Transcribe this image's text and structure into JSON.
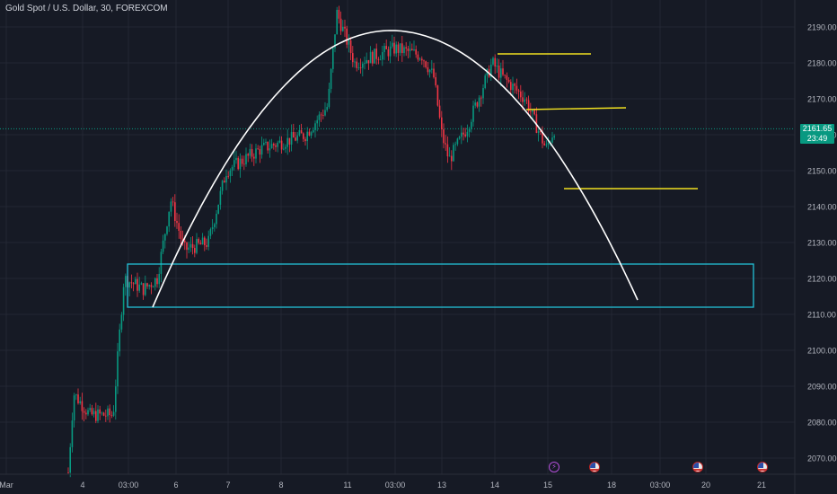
{
  "header": {
    "title": "Gold Spot / U.S. Dollar, 30, FOREXCOM"
  },
  "price_tag": {
    "price": "2161.65",
    "countdown": "23:49"
  },
  "colors": {
    "background": "#161a25",
    "grid": "#232733",
    "up": "#089981",
    "down": "#f23645",
    "arc": "#ffffff",
    "box": "#22c0d6",
    "levels": "#f0e020",
    "axis_text": "#b2b5be"
  },
  "events": [
    {
      "icon": "lightning-icon",
      "date": "15"
    },
    {
      "icon": "us-flag-icon",
      "date": "15"
    },
    {
      "icon": "us-flag-icon",
      "date": "20"
    },
    {
      "icon": "us-flag-icon",
      "date": "21"
    }
  ],
  "chart_data": {
    "type": "candlestick",
    "title": "Gold Spot / U.S. Dollar, 30, FOREXCOM",
    "ylim": [
      2065,
      2195
    ],
    "y_ticks": [
      2070,
      2080,
      2090,
      2100,
      2110,
      2120,
      2130,
      2140,
      2150,
      2160,
      2170,
      2180,
      2190
    ],
    "y_tick_labels": [
      "2070.00",
      "2080.00",
      "2090.00",
      "2100.00",
      "2110.00",
      "2120.00",
      "2130.00",
      "2140.00",
      "2150.00",
      "2160.00",
      "2170.00",
      "2180.00",
      "2190.00"
    ],
    "x_tick_labels": [
      "Mar",
      "4",
      "03:00",
      "6",
      "7",
      "8",
      "11",
      "03:00",
      "13",
      "14",
      "15",
      "18",
      "03:00",
      "20",
      "21"
    ],
    "current_price": 2161.65,
    "price_path": [
      [
        "4",
        2066
      ],
      [
        "4",
        2088
      ],
      [
        "4",
        2082
      ],
      [
        "03:00",
        2082
      ],
      [
        "03:00",
        2120
      ],
      [
        "03:00",
        2117
      ],
      [
        "6",
        2120
      ],
      [
        "6",
        2142
      ],
      [
        "6",
        2128
      ],
      [
        "7",
        2130
      ],
      [
        "7",
        2150
      ],
      [
        "7",
        2156
      ],
      [
        "8",
        2160
      ],
      [
        "8",
        2168
      ],
      [
        "11",
        2194
      ],
      [
        "11",
        2180
      ],
      [
        "03:00",
        2184
      ],
      [
        "03:00",
        2182
      ],
      [
        "13",
        2176
      ],
      [
        "13",
        2160
      ],
      [
        "13",
        2153
      ],
      [
        "14",
        2162
      ],
      [
        "14",
        2180
      ],
      [
        "14",
        2176
      ],
      [
        "15",
        2170
      ],
      [
        "15",
        2156
      ],
      [
        "15",
        2162
      ]
    ],
    "annotations": {
      "support_zone": [
        2112,
        2124
      ],
      "yellow_levels": [
        2182.5,
        2167,
        2145
      ],
      "arc": {
        "start": [
          "03:00",
          2112
        ],
        "peak": [
          "03:00",
          2189
        ],
        "end": [
          "18",
          2114
        ]
      }
    }
  }
}
